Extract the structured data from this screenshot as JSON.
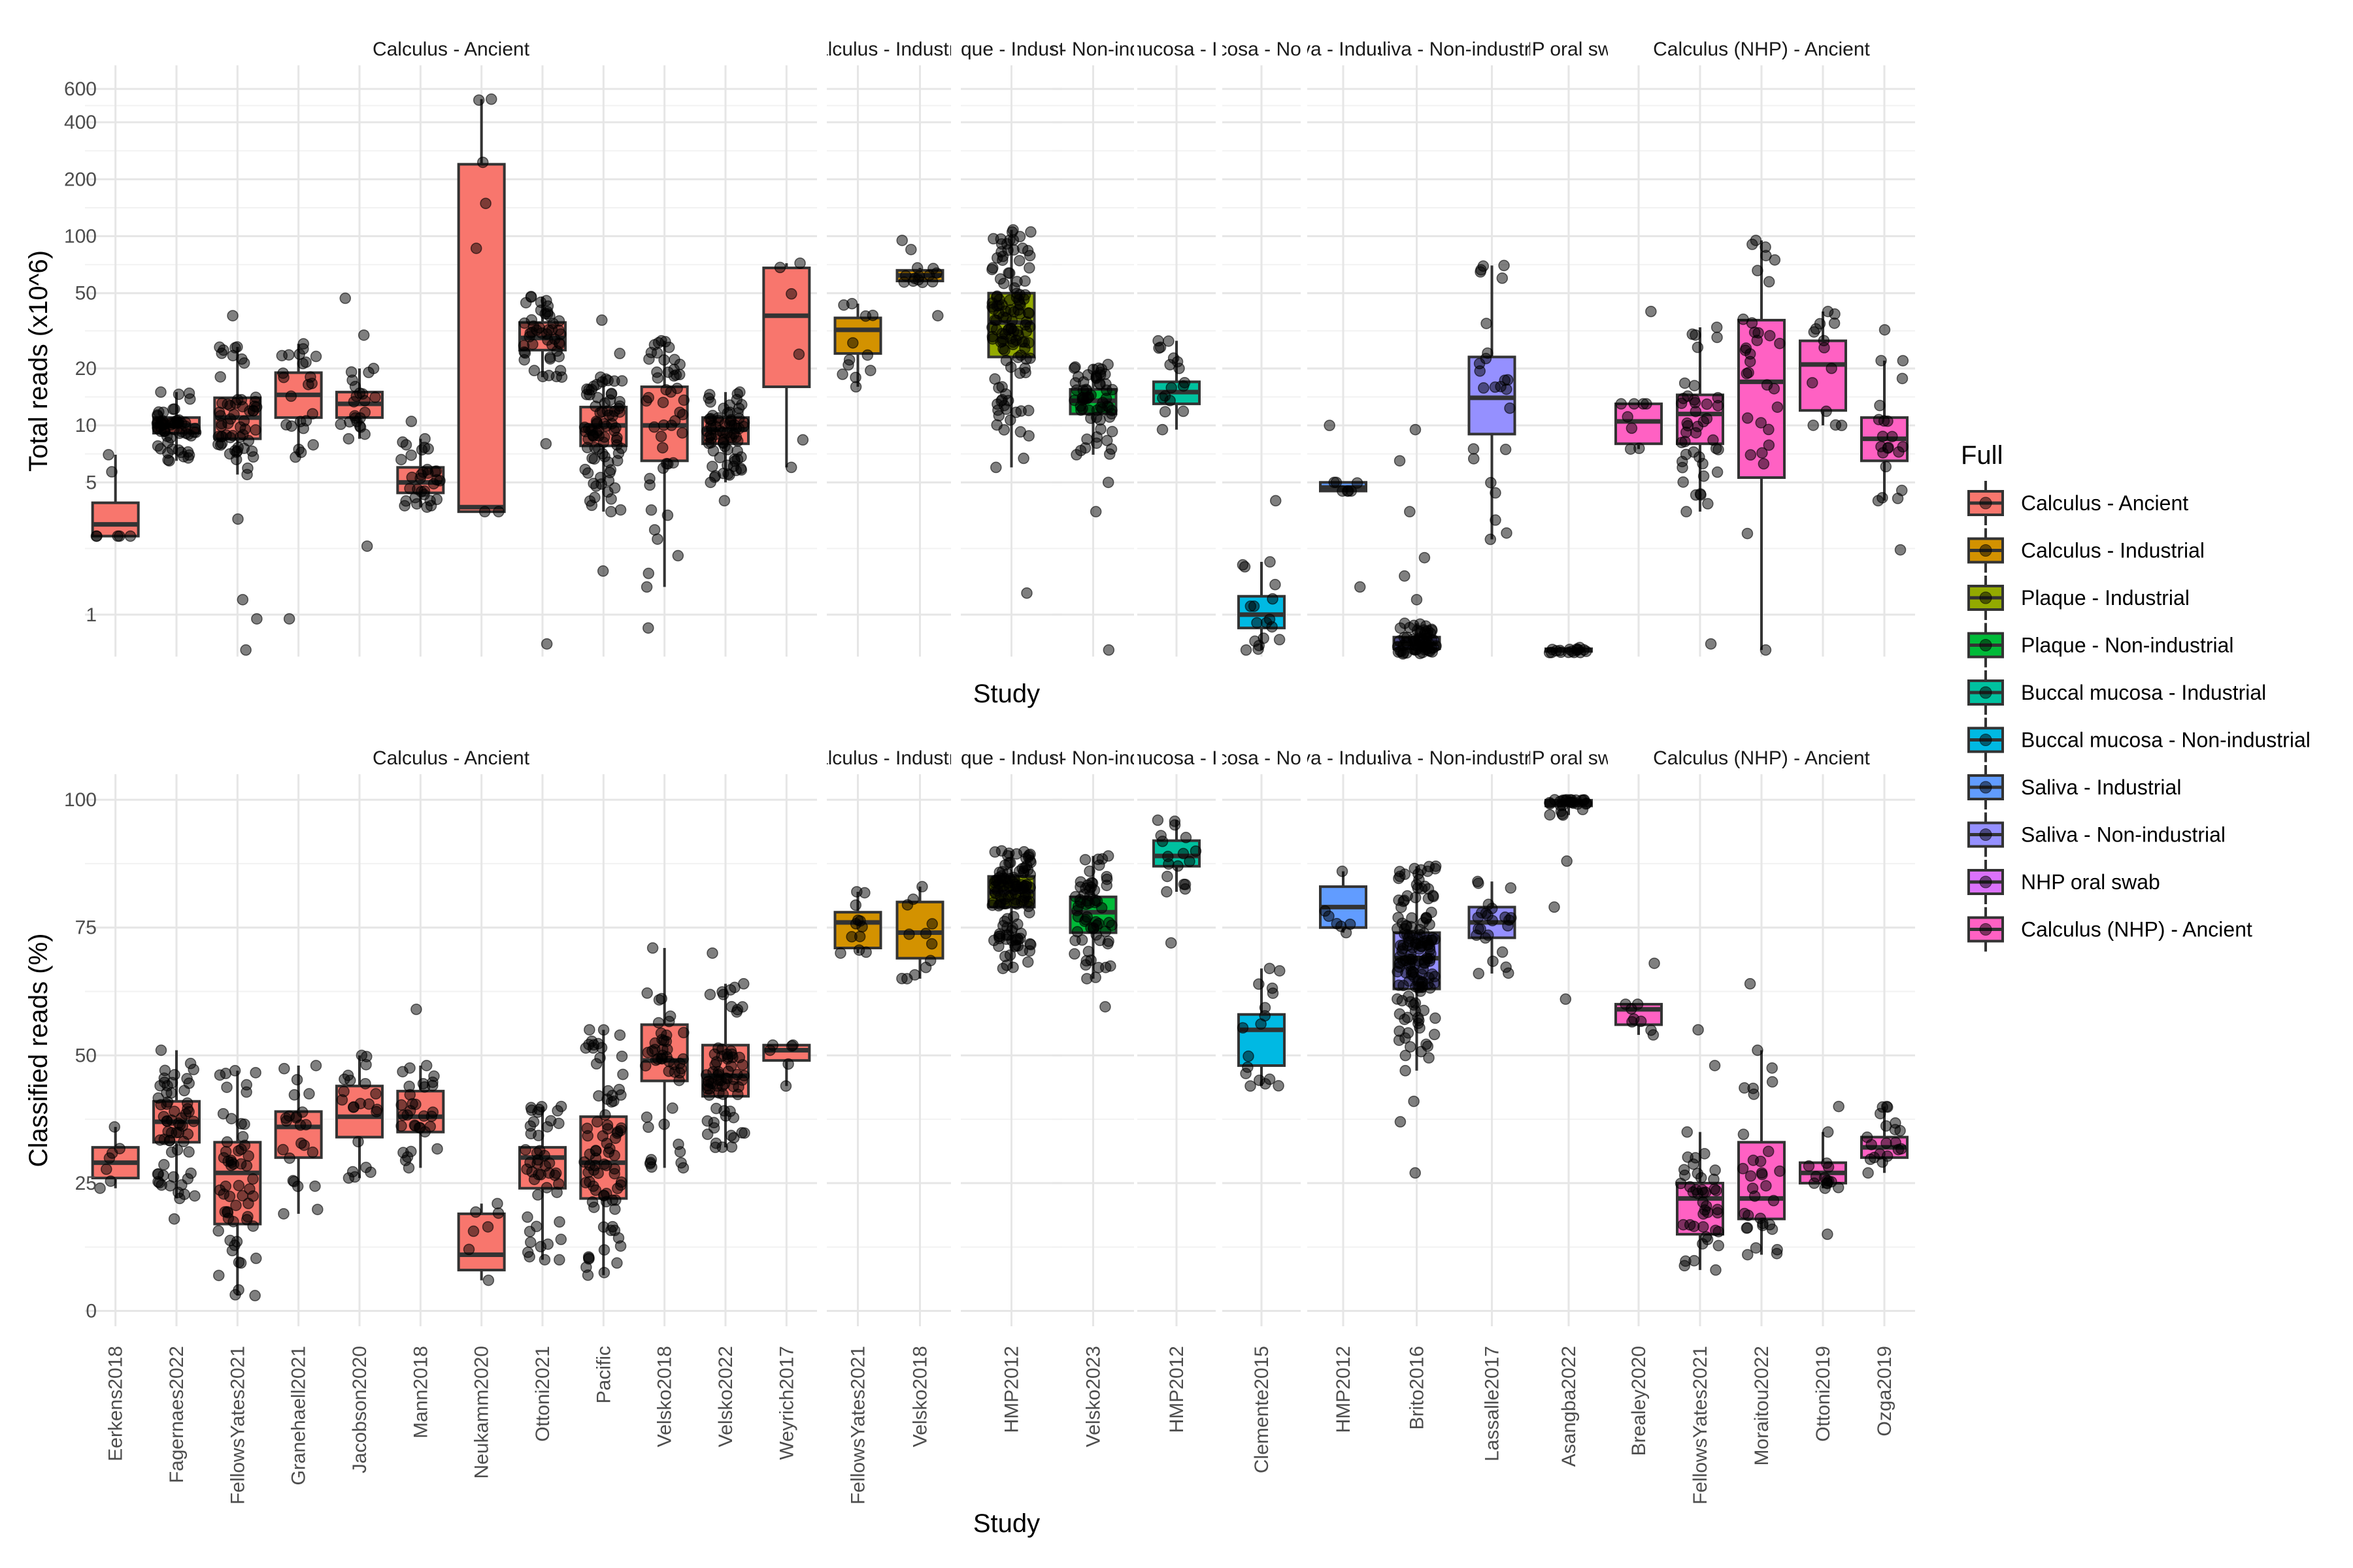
{
  "chart_data": [
    {
      "type": "box",
      "ylabel": "Total reads (x10^6)",
      "xlabel": "Study",
      "yscale": "log",
      "ylim": [
        0.6,
        800
      ],
      "yticks": [
        1,
        5,
        10,
        20,
        50,
        100,
        200,
        400,
        600
      ],
      "facets": [
        {
          "label": "Calculus - Ancient",
          "group": "Calculus - Ancient",
          "color": "#F8766D",
          "studies": [
            {
              "name": "Eerkens2018",
              "q1": 2.6,
              "median": 3.0,
              "q3": 3.9,
              "lo": 2.6,
              "hi": 7,
              "n": 5,
              "out": []
            },
            {
              "name": "Fagernaes2022",
              "q1": 9.1,
              "median": 10,
              "q3": 11,
              "lo": 6.5,
              "hi": 15,
              "n": 60,
              "out": []
            },
            {
              "name": "FellowsYates2021",
              "q1": 8.5,
              "median": 11,
              "q3": 14,
              "lo": 5.5,
              "hi": 26,
              "n": 55,
              "out": [
                0.65,
                0.95,
                1.2,
                3.2,
                38
              ]
            },
            {
              "name": "Granehaell2021",
              "q1": 11,
              "median": 14.5,
              "q3": 19,
              "lo": 6.8,
              "hi": 27,
              "n": 22,
              "out": [
                0.95
              ]
            },
            {
              "name": "Jacobson2020",
              "q1": 11,
              "median": 13,
              "q3": 15,
              "lo": 8.5,
              "hi": 20,
              "n": 20,
              "out": [
                2.3,
                30,
                47
              ]
            },
            {
              "name": "Mann2018",
              "q1": 4.4,
              "median": 5.0,
              "q3": 6.0,
              "lo": 3.7,
              "hi": 8.5,
              "n": 30,
              "out": [
                10.5
              ]
            },
            {
              "name": "Neukamm2020",
              "q1": 3.5,
              "median": 3.7,
              "q3": 240,
              "lo": 3.5,
              "hi": 530,
              "n": 5,
              "out": []
            },
            {
              "name": "Ottoni2021",
              "q1": 25,
              "median": 29,
              "q3": 35,
              "lo": 18,
              "hi": 48,
              "n": 45,
              "out": [
                0.7,
                8
              ]
            },
            {
              "name": "Pacific",
              "q1": 7.8,
              "median": 10,
              "q3": 12.5,
              "lo": 3.5,
              "hi": 18,
              "n": 80,
              "out": [
                1.7,
                24,
                36
              ]
            },
            {
              "name": "Velsko2018",
              "q1": 6.5,
              "median": 10,
              "q3": 16,
              "lo": 1.4,
              "hi": 28,
              "n": 45,
              "out": [
                0.85
              ]
            },
            {
              "name": "Velsko2022",
              "q1": 8,
              "median": 9.5,
              "q3": 11,
              "lo": 5,
              "hi": 15,
              "n": 70,
              "out": [
                4
              ]
            },
            {
              "name": "Weyrich2017",
              "q1": 16,
              "median": 38,
              "q3": 68,
              "lo": 6,
              "hi": 72,
              "n": 4,
              "out": []
            }
          ]
        },
        {
          "label": "Calculus - Industrial",
          "group": "Calculus - Industrial",
          "color": "#D39200",
          "studies": [
            {
              "name": "FellowsYates2021",
              "q1": 24,
              "median": 32,
              "q3": 37,
              "lo": 16,
              "hi": 44,
              "n": 10,
              "out": []
            },
            {
              "name": "Velsko2018",
              "q1": 58,
              "median": 62,
              "q3": 66,
              "lo": 57,
              "hi": 68,
              "n": 10,
              "out": [
                38,
                85,
                95
              ]
            }
          ]
        },
        {
          "label": "Plaque - Industrial",
          "group": "Plaque - Industrial",
          "color": "#93AA00",
          "studies": [
            {
              "name": "HMP2012",
              "q1": 23,
              "median": 35,
              "q3": 50,
              "lo": 6,
              "hi": 108,
              "n": 120,
              "out": [
                1.3
              ]
            }
          ]
        },
        {
          "label": "Plaque - Non-industrial",
          "group": "Plaque - Non-industrial",
          "color": "#00BA38",
          "studies": [
            {
              "name": "Velsko2023",
              "q1": 11.5,
              "median": 13.5,
              "q3": 15.5,
              "lo": 7,
              "hi": 21,
              "n": 60,
              "out": [
                0.65,
                3.5,
                5
              ]
            }
          ]
        },
        {
          "label": "Buccal mucosa - Industrial",
          "group": "Buccal mucosa - Industrial",
          "color": "#00C19F",
          "studies": [
            {
              "name": "HMP2012",
              "q1": 13,
              "median": 15,
              "q3": 17,
              "lo": 9.5,
              "hi": 28,
              "n": 15,
              "out": []
            }
          ]
        },
        {
          "label": "Buccal mucosa - Non-industrial",
          "group": "Buccal mucosa - Non-industrial",
          "color": "#00B9E3",
          "studies": [
            {
              "name": "Clemente2015",
              "q1": 0.85,
              "median": 1.0,
              "q3": 1.25,
              "lo": 0.65,
              "hi": 1.9,
              "n": 15,
              "out": [
                4
              ]
            }
          ]
        },
        {
          "label": "Saliva - Industrial",
          "group": "Saliva - Industrial",
          "color": "#619CFF",
          "studies": [
            {
              "name": "HMP2012",
              "q1": 4.5,
              "median": 4.7,
              "q3": 5.0,
              "lo": 4.5,
              "hi": 5.0,
              "n": 5,
              "out": [
                1.4,
                10
              ]
            }
          ]
        },
        {
          "label": "Saliva - Non-industrial",
          "group": "Saliva - Non-industrial",
          "color": "#9590FF",
          "studies": [
            {
              "name": "Brito2016",
              "q1": 0.66,
              "median": 0.7,
              "q3": 0.76,
              "lo": 0.62,
              "hi": 0.9,
              "n": 60,
              "out": [
                1.2,
                1.6,
                2,
                3.5,
                6.5,
                9.5
              ]
            },
            {
              "name": "Lassalle2017",
              "q1": 9,
              "median": 14,
              "q3": 23,
              "lo": 2.5,
              "hi": 70,
              "n": 22,
              "out": [
                60
              ]
            }
          ]
        },
        {
          "label": "NHP oral swab",
          "group": "NHP oral swab",
          "color": "#DB72FB",
          "studies": [
            {
              "name": "Asangba2022",
              "q1": 0.64,
              "median": 0.65,
              "q3": 0.66,
              "lo": 0.63,
              "hi": 0.67,
              "n": 15,
              "out": []
            }
          ]
        },
        {
          "label": "Calculus (NHP) - Ancient",
          "group": "Calculus (NHP) - Ancient",
          "color": "#FF61C3",
          "studies": [
            {
              "name": "Brealey2020",
              "q1": 8,
              "median": 10.5,
              "q3": 13,
              "lo": 7.5,
              "hi": 13,
              "n": 6,
              "out": [
                40
              ]
            },
            {
              "name": "FellowsYates2021",
              "q1": 8,
              "median": 11.5,
              "q3": 14.5,
              "lo": 3.5,
              "hi": 33,
              "n": 40,
              "out": [
                0.7
              ]
            },
            {
              "name": "Moraitou2022",
              "q1": 5.3,
              "median": 17,
              "q3": 36,
              "lo": 0.65,
              "hi": 95,
              "n": 30,
              "out": []
            },
            {
              "name": "Ottoni2019",
              "q1": 12,
              "median": 21,
              "q3": 28,
              "lo": 10,
              "hi": 40,
              "n": 12,
              "out": []
            },
            {
              "name": "Ozga2019",
              "q1": 6.5,
              "median": 8.5,
              "q3": 11,
              "lo": 4,
              "hi": 22,
              "n": 18,
              "out": [
                2.2,
                32
              ]
            }
          ]
        }
      ]
    },
    {
      "type": "box",
      "ylabel": "Classified reads (%)",
      "xlabel": "Study",
      "yscale": "linear",
      "ylim": [
        -3,
        105
      ],
      "yticks": [
        0,
        25,
        50,
        75,
        100
      ],
      "facets": [
        {
          "label": "Calculus - Ancient",
          "group": "Calculus - Ancient",
          "color": "#F8766D",
          "studies": [
            {
              "name": "Eerkens2018",
              "q1": 26,
              "median": 29,
              "q3": 32,
              "lo": 24,
              "hi": 36,
              "n": 5,
              "out": []
            },
            {
              "name": "Fagernaes2022",
              "q1": 33,
              "median": 37,
              "q3": 41,
              "lo": 22,
              "hi": 51,
              "n": 60,
              "out": [
                18
              ]
            },
            {
              "name": "FellowsYates2021",
              "q1": 17,
              "median": 27,
              "q3": 33,
              "lo": 3,
              "hi": 47,
              "n": 55,
              "out": []
            },
            {
              "name": "Granehaell2021",
              "q1": 30,
              "median": 36,
              "q3": 39,
              "lo": 19,
              "hi": 48,
              "n": 22,
              "out": []
            },
            {
              "name": "Jacobson2020",
              "q1": 34,
              "median": 38,
              "q3": 44,
              "lo": 26,
              "hi": 50,
              "n": 20,
              "out": []
            },
            {
              "name": "Mann2018",
              "q1": 35,
              "median": 38,
              "q3": 43,
              "lo": 28,
              "hi": 48,
              "n": 30,
              "out": [
                59
              ]
            },
            {
              "name": "Neukamm2020",
              "q1": 8,
              "median": 11,
              "q3": 19,
              "lo": 6,
              "hi": 21,
              "n": 5,
              "out": []
            },
            {
              "name": "Ottoni2021",
              "q1": 24,
              "median": 30,
              "q3": 32,
              "lo": 10,
              "hi": 40,
              "n": 45,
              "out": []
            },
            {
              "name": "Pacific",
              "q1": 22,
              "median": 29,
              "q3": 38,
              "lo": 7,
              "hi": 55,
              "n": 80,
              "out": []
            },
            {
              "name": "Velsko2018",
              "q1": 45,
              "median": 49,
              "q3": 56,
              "lo": 28,
              "hi": 71,
              "n": 45,
              "out": []
            },
            {
              "name": "Velsko2022",
              "q1": 42,
              "median": 46,
              "q3": 52,
              "lo": 32,
              "hi": 64,
              "n": 70,
              "out": [
                70
              ]
            },
            {
              "name": "Weyrich2017",
              "q1": 49,
              "median": 51,
              "q3": 52,
              "lo": 44,
              "hi": 52,
              "n": 4,
              "out": []
            }
          ]
        },
        {
          "label": "Calculus - Industrial",
          "group": "Calculus - Industrial",
          "color": "#D39200",
          "studies": [
            {
              "name": "FellowsYates2021",
              "q1": 71,
              "median": 76,
              "q3": 78,
              "lo": 70,
              "hi": 82,
              "n": 10,
              "out": []
            },
            {
              "name": "Velsko2018",
              "q1": 69,
              "median": 74,
              "q3": 80,
              "lo": 65,
              "hi": 83,
              "n": 10,
              "out": []
            }
          ]
        },
        {
          "label": "Plaque - Industrial",
          "group": "Plaque - Industrial",
          "color": "#93AA00",
          "studies": [
            {
              "name": "HMP2012",
              "q1": 79,
              "median": 82,
              "q3": 85,
              "lo": 67,
              "hi": 90,
              "n": 120,
              "out": []
            }
          ]
        },
        {
          "label": "Plaque - Non-industrial",
          "group": "Plaque - Non-industrial",
          "color": "#00BA38",
          "studies": [
            {
              "name": "Velsko2023",
              "q1": 74,
              "median": 78,
              "q3": 81,
              "lo": 65,
              "hi": 89,
              "n": 60,
              "out": [
                59.5
              ]
            }
          ]
        },
        {
          "label": "Buccal mucosa - Industrial",
          "group": "Buccal mucosa - Industrial",
          "color": "#00C19F",
          "studies": [
            {
              "name": "HMP2012",
              "q1": 87,
              "median": 89,
              "q3": 92,
              "lo": 82,
              "hi": 96,
              "n": 15,
              "out": [
                72
              ]
            }
          ]
        },
        {
          "label": "Buccal mucosa - Non-industrial",
          "group": "Buccal mucosa - Non-industrial",
          "color": "#00B9E3",
          "studies": [
            {
              "name": "Clemente2015",
              "q1": 48,
              "median": 55,
              "q3": 58,
              "lo": 44,
              "hi": 67,
              "n": 15,
              "out": []
            }
          ]
        },
        {
          "label": "Saliva - Industrial",
          "group": "Saliva - Industrial",
          "color": "#619CFF",
          "studies": [
            {
              "name": "HMP2012",
              "q1": 75,
              "median": 79,
              "q3": 83,
              "lo": 74,
              "hi": 86,
              "n": 5,
              "out": []
            }
          ]
        },
        {
          "label": "Saliva - Non-industrial",
          "group": "Saliva - Non-industrial",
          "color": "#9590FF",
          "studies": [
            {
              "name": "Brito2016",
              "q1": 63,
              "median": 69,
              "q3": 74,
              "lo": 47,
              "hi": 87,
              "n": 150,
              "out": [
                27,
                37,
                41
              ]
            },
            {
              "name": "Lassalle2017",
              "q1": 73,
              "median": 76,
              "q3": 79,
              "lo": 66,
              "hi": 84,
              "n": 22,
              "out": []
            }
          ]
        },
        {
          "label": "NHP oral swab",
          "group": "NHP oral swab",
          "color": "#DB72FB",
          "studies": [
            {
              "name": "Asangba2022",
              "q1": 98.8,
              "median": 99.5,
              "q3": 99.9,
              "lo": 97,
              "hi": 100,
              "n": 25,
              "out": [
                61,
                79,
                88
              ]
            }
          ]
        },
        {
          "label": "Calculus (NHP) - Ancient",
          "group": "Calculus (NHP) - Ancient",
          "color": "#FF61C3",
          "studies": [
            {
              "name": "Brealey2020",
              "q1": 56,
              "median": 59,
              "q3": 60,
              "lo": 54,
              "hi": 60,
              "n": 6,
              "out": [
                68
              ]
            },
            {
              "name": "FellowsYates2021",
              "q1": 15,
              "median": 22,
              "q3": 25,
              "lo": 8,
              "hi": 35,
              "n": 40,
              "out": [
                48,
                55
              ]
            },
            {
              "name": "Moraitou2022",
              "q1": 18,
              "median": 22,
              "q3": 33,
              "lo": 11,
              "hi": 51,
              "n": 30,
              "out": [
                64
              ]
            },
            {
              "name": "Ottoni2019",
              "q1": 25,
              "median": 27,
              "q3": 29,
              "lo": 24,
              "hi": 35,
              "n": 12,
              "out": [
                15,
                40
              ]
            },
            {
              "name": "Ozga2019",
              "q1": 30,
              "median": 32,
              "q3": 34,
              "lo": 27,
              "hi": 40,
              "n": 18,
              "out": []
            }
          ]
        }
      ]
    }
  ],
  "legend": {
    "title": "Full",
    "items": [
      {
        "label": "Calculus - Ancient",
        "color": "#F8766D"
      },
      {
        "label": "Calculus - Industrial",
        "color": "#D39200"
      },
      {
        "label": "Plaque - Industrial",
        "color": "#93AA00"
      },
      {
        "label": "Plaque - Non-industrial",
        "color": "#00BA38"
      },
      {
        "label": "Buccal mucosa - Industrial",
        "color": "#00C19F"
      },
      {
        "label": "Buccal mucosa - Non-industrial",
        "color": "#00B9E3"
      },
      {
        "label": "Saliva - Industrial",
        "color": "#619CFF"
      },
      {
        "label": "Saliva - Non-industrial",
        "color": "#9590FF"
      },
      {
        "label": "NHP oral swab",
        "color": "#DB72FB"
      },
      {
        "label": "Calculus (NHP) - Ancient",
        "color": "#FF61C3"
      }
    ]
  }
}
